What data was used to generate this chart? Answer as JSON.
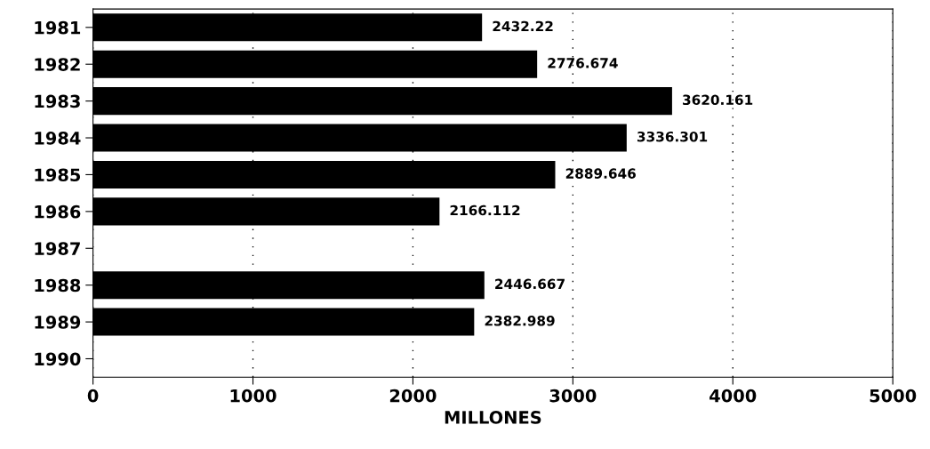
{
  "chart_data": {
    "type": "bar",
    "orientation": "horizontal",
    "xlabel": "MILLONES",
    "categories": [
      "1981",
      "1982",
      "1983",
      "1984",
      "1985",
      "1986",
      "1987",
      "1988",
      "1989",
      "1990"
    ],
    "values": [
      2432.22,
      2776.674,
      3620.161,
      3336.301,
      2889.646,
      2166.112,
      null,
      2446.667,
      2382.989,
      null
    ],
    "value_labels": [
      "2432.22",
      "2776.674",
      "3620.161",
      "3336.301",
      "2889.646",
      "2166.112",
      null,
      "2446.667",
      "2382.989",
      null
    ],
    "color": "#000000",
    "xlim": [
      0,
      5000
    ],
    "xticks": [
      0,
      1000,
      2000,
      3000,
      4000,
      5000
    ],
    "grid": "x"
  }
}
